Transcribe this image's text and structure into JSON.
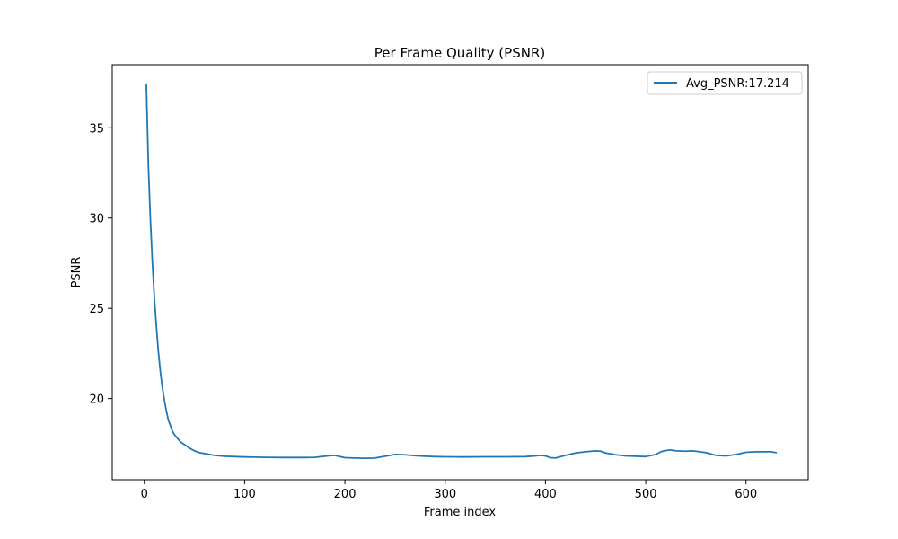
{
  "chart_data": {
    "type": "line",
    "title": "Per Frame Quality (PSNR)",
    "xlabel": "Frame index",
    "ylabel": "PSNR",
    "xlim": [
      -32,
      662
    ],
    "ylim": [
      15.5,
      38.5
    ],
    "xticks": [
      0,
      100,
      200,
      300,
      400,
      500,
      600
    ],
    "yticks": [
      20,
      25,
      30,
      35
    ],
    "grid": false,
    "legend_position": "top-right",
    "series": [
      {
        "name": "Avg_PSNR:17.214",
        "color": "#1f77b4",
        "x": [
          2,
          4,
          6,
          8,
          10,
          12,
          14,
          16,
          18,
          20,
          22,
          24,
          26,
          28,
          30,
          33,
          36,
          40,
          45,
          50,
          55,
          60,
          65,
          70,
          80,
          90,
          100,
          110,
          120,
          140,
          160,
          170,
          180,
          185,
          190,
          195,
          200,
          210,
          220,
          230,
          240,
          250,
          260,
          270,
          280,
          290,
          300,
          320,
          340,
          360,
          380,
          390,
          395,
          400,
          405,
          410,
          420,
          430,
          440,
          450,
          455,
          460,
          470,
          480,
          490,
          500,
          510,
          515,
          520,
          525,
          530,
          540,
          545,
          550,
          560,
          570,
          580,
          590,
          600,
          610,
          620,
          625,
          630
        ],
        "values": [
          37.4,
          33.0,
          30.0,
          27.6,
          25.6,
          24.0,
          22.6,
          21.5,
          20.6,
          19.9,
          19.3,
          18.8,
          18.5,
          18.2,
          18.0,
          17.8,
          17.6,
          17.45,
          17.25,
          17.1,
          17.0,
          16.95,
          16.9,
          16.85,
          16.8,
          16.78,
          16.76,
          16.75,
          16.74,
          16.73,
          16.73,
          16.74,
          16.8,
          16.83,
          16.85,
          16.78,
          16.72,
          16.7,
          16.69,
          16.7,
          16.8,
          16.9,
          16.88,
          16.83,
          16.8,
          16.78,
          16.77,
          16.76,
          16.77,
          16.77,
          16.78,
          16.82,
          16.85,
          16.82,
          16.72,
          16.7,
          16.85,
          16.98,
          17.05,
          17.1,
          17.08,
          16.98,
          16.88,
          16.82,
          16.8,
          16.78,
          16.9,
          17.05,
          17.12,
          17.15,
          17.1,
          17.08,
          17.1,
          17.08,
          17.0,
          16.85,
          16.82,
          16.9,
          17.02,
          17.05,
          17.05,
          17.05,
          17.0
        ]
      }
    ]
  }
}
